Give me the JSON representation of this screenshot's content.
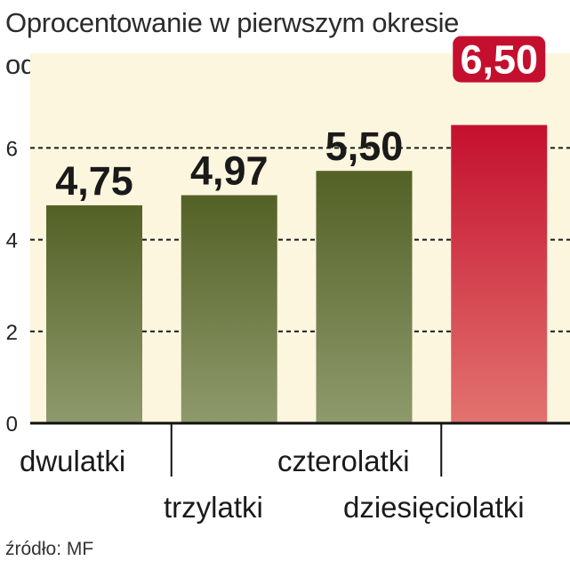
{
  "title": "Oprocentowanie w pierwszym okresie odsetkowym",
  "source": "źródło: MF",
  "colors": {
    "plot_background": "#fdf6df",
    "green_bar_top": "#536126",
    "green_bar_bottom": "#8e9a6c",
    "red_bar_top": "#c4102e",
    "red_bar_bottom": "#e2736f",
    "highlight_badge": "#c4102e",
    "grid": "#1a1a1a"
  },
  "chart_data": {
    "type": "bar",
    "title": "Oprocentowanie w pierwszym okresie odsetkowym",
    "categories": [
      "dwulatki",
      "trzylatki",
      "czterolatki",
      "dziesięciolatki"
    ],
    "values": [
      4.75,
      4.97,
      5.5,
      6.5
    ],
    "value_labels": [
      "4,75",
      "4,97",
      "5,50",
      "6,50"
    ],
    "highlighted_category": "dziesięciolatki",
    "ylim": [
      0,
      6.5
    ],
    "yticks": [
      0,
      2,
      4,
      6
    ],
    "ytick_labels": [
      "0",
      "2",
      "4",
      "6"
    ],
    "grid": "dashed horizontal at 2, 4, 6",
    "xlabel": "",
    "ylabel": ""
  }
}
